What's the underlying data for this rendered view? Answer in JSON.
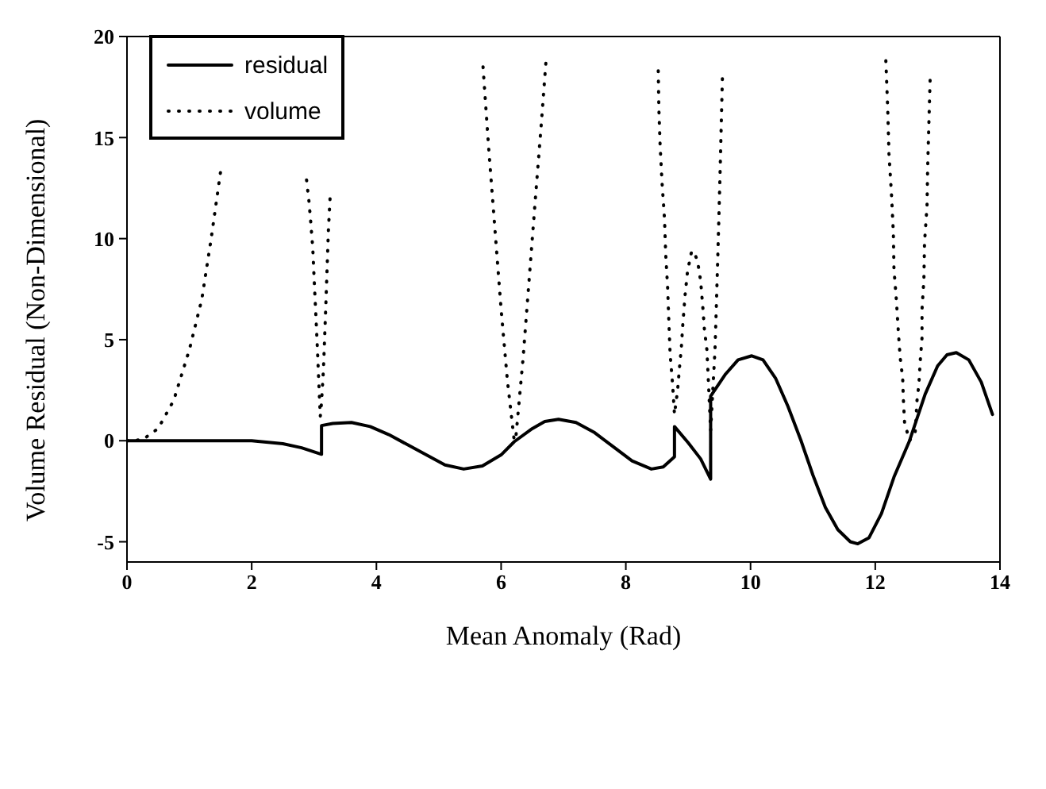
{
  "chart_data": {
    "type": "line",
    "xlabel": "Mean Anomaly (Rad)",
    "ylabel": "Volume Residual (Non-Dimensional)",
    "xlim": [
      0,
      14
    ],
    "xticks": [
      0,
      2,
      4,
      6,
      8,
      10,
      12,
      14
    ],
    "ylim": [
      -6,
      20
    ],
    "yticks": [
      -5,
      0,
      5,
      10,
      15,
      20
    ],
    "grid": false,
    "legend": "top left",
    "marker": "none",
    "series": [
      {
        "name": "residual",
        "color": "#000000",
        "line_style": "solid",
        "x": [
          0,
          1,
          1.5,
          2,
          2.5,
          2.8,
          3.12,
          3.12,
          3.3,
          3.6,
          3.9,
          4.2,
          4.5,
          4.8,
          5.1,
          5.4,
          5.7,
          6.0,
          6.21,
          6.5,
          6.7,
          6.92,
          7.2,
          7.5,
          7.8,
          8.1,
          8.41,
          8.6,
          8.78,
          8.78,
          9.0,
          9.2,
          9.36,
          9.36,
          9.6,
          9.8,
          10.02,
          10.2,
          10.4,
          10.6,
          10.81,
          11.0,
          11.2,
          11.4,
          11.6,
          11.72,
          11.9,
          12.1,
          12.3,
          12.55,
          12.8,
          13.0,
          13.15,
          13.3,
          13.5,
          13.7,
          13.88
        ],
        "values": [
          0,
          0,
          0,
          0,
          -0.15,
          -0.35,
          -0.67,
          0.75,
          0.85,
          0.9,
          0.7,
          0.3,
          -0.2,
          -0.7,
          -1.2,
          -1.4,
          -1.25,
          -0.7,
          -0.05,
          0.6,
          0.95,
          1.06,
          0.9,
          0.4,
          -0.3,
          -1.0,
          -1.4,
          -1.3,
          -0.8,
          0.7,
          -0.1,
          -0.9,
          -1.9,
          2.2,
          3.3,
          4.0,
          4.2,
          4.0,
          3.1,
          1.7,
          0,
          -1.7,
          -3.3,
          -4.4,
          -5.0,
          -5.1,
          -4.8,
          -3.6,
          -1.8,
          0,
          2.3,
          3.7,
          4.25,
          4.36,
          4.0,
          2.9,
          1.3
        ]
      },
      {
        "name": "volume",
        "color": "#000000",
        "line_style": "dotted",
        "x": [
          0,
          0.25,
          0.5,
          0.75,
          1.0,
          1.2,
          1.35,
          1.5,
          1.7,
          2.88,
          2.92,
          2.95,
          2.98,
          3.0,
          3.02,
          3.04,
          3.06,
          3.08,
          3.1,
          3.12,
          3.15,
          3.17,
          3.19,
          3.21,
          3.23,
          3.26,
          4.5,
          5.71,
          5.8,
          5.9,
          6.0,
          6.1,
          6.21,
          6.24,
          6.35,
          6.45,
          6.55,
          6.64,
          6.72,
          7.5,
          8.52,
          8.53,
          8.55,
          8.58,
          8.62,
          8.64,
          8.67,
          8.69,
          8.71,
          8.75,
          8.78,
          8.83,
          8.86,
          8.89,
          8.91,
          8.95,
          8.99,
          9.05,
          9.08,
          9.11,
          9.15,
          9.2,
          9.24,
          9.26,
          9.3,
          9.32,
          9.36,
          9.4,
          9.43,
          9.45,
          9.47,
          9.49,
          9.51,
          9.53,
          9.55,
          11.0,
          12.17,
          12.2,
          12.22,
          12.26,
          12.29,
          12.3,
          12.34,
          12.37,
          12.4,
          12.44,
          12.45,
          12.47,
          12.55,
          12.64,
          12.67,
          12.7,
          12.72,
          12.75,
          12.75,
          12.78,
          12.79,
          12.83,
          12.84,
          12.86,
          12.88
        ],
        "values": [
          0,
          0.05,
          0.6,
          2,
          4.5,
          7,
          10,
          13.3,
          null,
          12.9,
          11.8,
          10.7,
          9.5,
          8.1,
          6.8,
          5.5,
          4.1,
          2.6,
          1.2,
          1.9,
          3.5,
          5.1,
          6.8,
          8.6,
          10.4,
          12.2,
          null,
          18.5,
          14.5,
          10.5,
          6.5,
          3,
          0,
          0.3,
          4,
          8,
          12,
          15.5,
          18.8,
          null,
          18.3,
          16.4,
          14.6,
          12.8,
          11.0,
          9.2,
          7.6,
          5.9,
          4.3,
          2.8,
          1.3,
          2.5,
          3.6,
          4.6,
          5.6,
          7.2,
          8.4,
          9.3,
          9.4,
          9.2,
          8.9,
          7.9,
          6.4,
          5.5,
          4.5,
          3.2,
          0.5,
          2.8,
          4.5,
          6.5,
          8.6,
          10.8,
          13.1,
          15.6,
          18.1,
          null,
          18.8,
          16.4,
          14.2,
          12.2,
          10.3,
          8.5,
          6.9,
          5.4,
          4.1,
          3.1,
          2.1,
          0.9,
          0,
          0.4,
          2.0,
          2.8,
          3.9,
          5.1,
          6.5,
          8.0,
          9.8,
          11.6,
          13.5,
          15.7,
          17.9
        ]
      }
    ]
  }
}
